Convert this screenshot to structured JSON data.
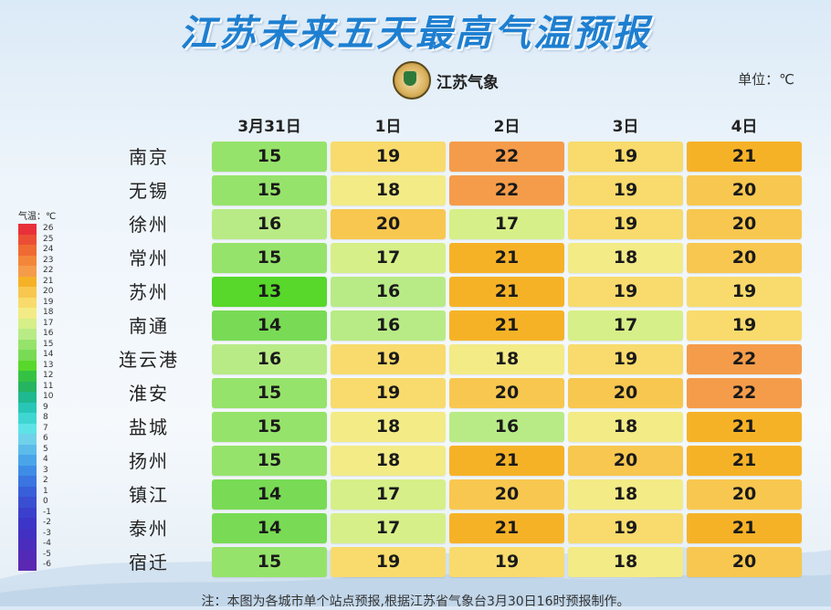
{
  "title": "江苏未来五天最高气温预报",
  "logo_text": "江苏气象",
  "unit": "单位：℃",
  "legend_title": "气温：℃",
  "note": "注：本图为各城市单个站点预报,根据江苏省气象台3月30日16时预报制作。",
  "chart_data": {
    "type": "heatmap",
    "title": "江苏未来五天最高气温预报",
    "unit": "℃",
    "columns": [
      "3月31日",
      "1日",
      "2日",
      "3日",
      "4日"
    ],
    "rows": [
      {
        "city": "南京",
        "values": [
          15,
          19,
          22,
          19,
          21
        ]
      },
      {
        "city": "无锡",
        "values": [
          15,
          18,
          22,
          19,
          20
        ]
      },
      {
        "city": "徐州",
        "values": [
          16,
          20,
          17,
          19,
          20
        ]
      },
      {
        "city": "常州",
        "values": [
          15,
          17,
          21,
          18,
          20
        ]
      },
      {
        "city": "苏州",
        "values": [
          13,
          16,
          21,
          19,
          19
        ]
      },
      {
        "city": "南通",
        "values": [
          14,
          16,
          21,
          17,
          19
        ]
      },
      {
        "city": "连云港",
        "values": [
          16,
          19,
          18,
          19,
          22
        ]
      },
      {
        "city": "淮安",
        "values": [
          15,
          19,
          20,
          20,
          22
        ]
      },
      {
        "city": "盐城",
        "values": [
          15,
          18,
          16,
          18,
          21
        ]
      },
      {
        "city": "扬州",
        "values": [
          15,
          18,
          21,
          20,
          21
        ]
      },
      {
        "city": "镇江",
        "values": [
          14,
          17,
          20,
          18,
          20
        ]
      },
      {
        "city": "泰州",
        "values": [
          14,
          17,
          21,
          19,
          21
        ]
      },
      {
        "city": "宿迁",
        "values": [
          15,
          19,
          19,
          18,
          20
        ]
      }
    ],
    "legend": {
      "values": [
        26,
        25,
        24,
        23,
        22,
        21,
        20,
        19,
        18,
        17,
        16,
        15,
        14,
        13,
        12,
        11,
        10,
        9,
        8,
        7,
        6,
        5,
        4,
        3,
        2,
        1,
        0,
        -1,
        -2,
        -3,
        -4,
        -5,
        -6
      ],
      "colors": {
        "26": "#e8303a",
        "25": "#ec4e35",
        "24": "#f06a33",
        "23": "#f4863a",
        "22": "#f59c4a",
        "21": "#f6b227",
        "20": "#f8c750",
        "19": "#f8db6c",
        "18": "#f3eb86",
        "17": "#d7ef88",
        "16": "#b8eb86",
        "15": "#96e36b",
        "14": "#79db55",
        "13": "#57d82a",
        "12": "#35c244",
        "11": "#25b460",
        "10": "#1fb88f",
        "9": "#28c6b7",
        "8": "#3fd6d2",
        "7": "#5de3e6",
        "6": "#6fd2ea",
        "5": "#5bbcea",
        "4": "#4aa4ea",
        "3": "#3e8ce6",
        "2": "#3a75e0",
        "1": "#385fd9",
        "0": "#3a4ed2",
        "-1": "#3b40cc",
        "-2": "#3d35c7",
        "-3": "#4130c2",
        "-4": "#4a2dbd",
        "-5": "#532ab8",
        "-6": "#5c28b2"
      }
    }
  }
}
